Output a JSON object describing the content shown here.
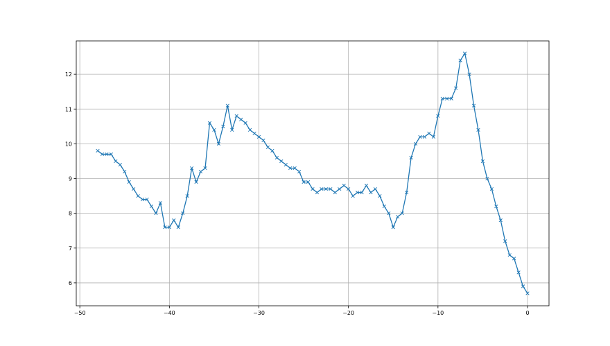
{
  "chart_data": {
    "type": "line",
    "title": "",
    "xlabel": "",
    "ylabel": "",
    "xlim": [
      -50.4,
      2.4
    ],
    "ylim": [
      5.34,
      12.96
    ],
    "grid": true,
    "marker": "x",
    "color": "#1f77b4",
    "xticks": [
      -50,
      -40,
      -30,
      -20,
      -10,
      0
    ],
    "yticks": [
      6,
      7,
      8,
      9,
      10,
      11,
      12
    ],
    "x": [
      -48,
      -47.5,
      -47,
      -46.5,
      -46,
      -45.5,
      -45,
      -44.5,
      -44,
      -43.5,
      -43,
      -42.5,
      -42,
      -41.5,
      -41,
      -40.5,
      -40,
      -39.5,
      -39,
      -38.5,
      -38,
      -37.5,
      -37,
      -36.5,
      -36,
      -35.5,
      -35,
      -34.5,
      -34,
      -33.5,
      -33,
      -32.5,
      -32,
      -31.5,
      -31,
      -30.5,
      -30,
      -29.5,
      -29,
      -28.5,
      -28,
      -27.5,
      -27,
      -26.5,
      -26,
      -25.5,
      -25,
      -24.5,
      -24,
      -23.5,
      -23,
      -22.5,
      -22,
      -21.5,
      -21,
      -20.5,
      -20,
      -19.5,
      -19,
      -18.5,
      -18,
      -17.5,
      -17,
      -16.5,
      -16,
      -15.5,
      -15,
      -14.5,
      -14,
      -13.5,
      -13,
      -12.5,
      -12,
      -11.5,
      -11,
      -10.5,
      -10,
      -9.5,
      -9,
      -8.5,
      -8,
      -7.5,
      -7,
      -6.5,
      -6,
      -5.5,
      -5,
      -4.5,
      -4,
      -3.5,
      -3,
      -2.5,
      -2,
      -1.5,
      -1,
      -0.5,
      0
    ],
    "y": [
      9.8,
      9.7,
      9.7,
      9.7,
      9.5,
      9.4,
      9.2,
      8.9,
      8.7,
      8.5,
      8.4,
      8.4,
      8.2,
      8.0,
      8.3,
      7.6,
      7.6,
      7.8,
      7.6,
      8.0,
      8.5,
      9.3,
      8.9,
      9.2,
      9.3,
      10.6,
      10.4,
      10.0,
      10.5,
      11.1,
      10.4,
      10.8,
      10.7,
      10.6,
      10.4,
      10.3,
      10.2,
      10.1,
      9.9,
      9.8,
      9.6,
      9.5,
      9.4,
      9.3,
      9.3,
      9.2,
      8.9,
      8.9,
      8.7,
      8.6,
      8.7,
      8.7,
      8.7,
      8.6,
      8.7,
      8.8,
      8.7,
      8.5,
      8.6,
      8.6,
      8.8,
      8.6,
      8.7,
      8.5,
      8.2,
      8.0,
      7.6,
      7.9,
      8.0,
      8.6,
      9.6,
      10.0,
      10.2,
      10.2,
      10.3,
      10.2,
      10.8,
      11.3,
      11.3,
      11.3,
      11.6,
      12.4,
      12.6,
      12.0,
      11.1,
      10.4,
      9.5,
      9.0,
      8.7,
      8.2,
      7.8,
      7.2,
      6.8,
      6.7,
      6.3,
      5.9,
      5.7
    ]
  }
}
